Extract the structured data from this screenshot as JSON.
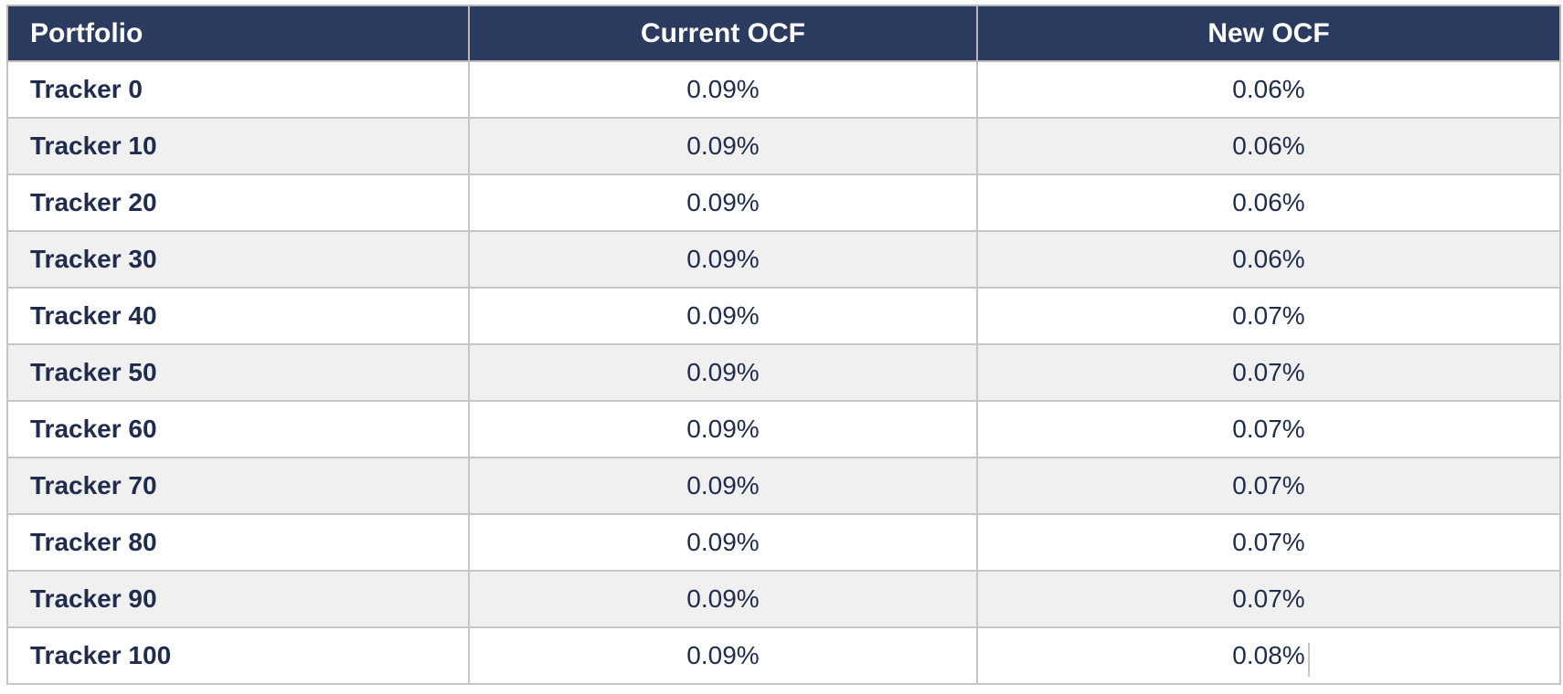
{
  "table": {
    "columns": [
      {
        "label": "Portfolio"
      },
      {
        "label": "Current OCF"
      },
      {
        "label": "New OCF"
      }
    ],
    "rows": [
      {
        "portfolio": "Tracker 0",
        "current_ocf": "0.09%",
        "new_ocf": "0.06%"
      },
      {
        "portfolio": "Tracker 10",
        "current_ocf": "0.09%",
        "new_ocf": "0.06%"
      },
      {
        "portfolio": "Tracker 20",
        "current_ocf": "0.09%",
        "new_ocf": "0.06%"
      },
      {
        "portfolio": "Tracker 30",
        "current_ocf": "0.09%",
        "new_ocf": "0.06%"
      },
      {
        "portfolio": "Tracker 40",
        "current_ocf": "0.09%",
        "new_ocf": "0.07%"
      },
      {
        "portfolio": "Tracker 50",
        "current_ocf": "0.09%",
        "new_ocf": "0.07%"
      },
      {
        "portfolio": "Tracker 60",
        "current_ocf": "0.09%",
        "new_ocf": "0.07%"
      },
      {
        "portfolio": "Tracker 70",
        "current_ocf": "0.09%",
        "new_ocf": "0.07%"
      },
      {
        "portfolio": "Tracker 80",
        "current_ocf": "0.09%",
        "new_ocf": "0.07%"
      },
      {
        "portfolio": "Tracker 90",
        "current_ocf": "0.09%",
        "new_ocf": "0.07%"
      },
      {
        "portfolio": "Tracker 100",
        "current_ocf": "0.09%",
        "new_ocf": "0.08%"
      }
    ]
  },
  "colors": {
    "header_bg": "#2b3a5f",
    "header_text": "#ffffff",
    "body_text": "#1f2c4e",
    "alt_row_bg": "#f0f0f0",
    "grid_border": "#c6c6c6",
    "outer_border": "#b9b9b9"
  }
}
